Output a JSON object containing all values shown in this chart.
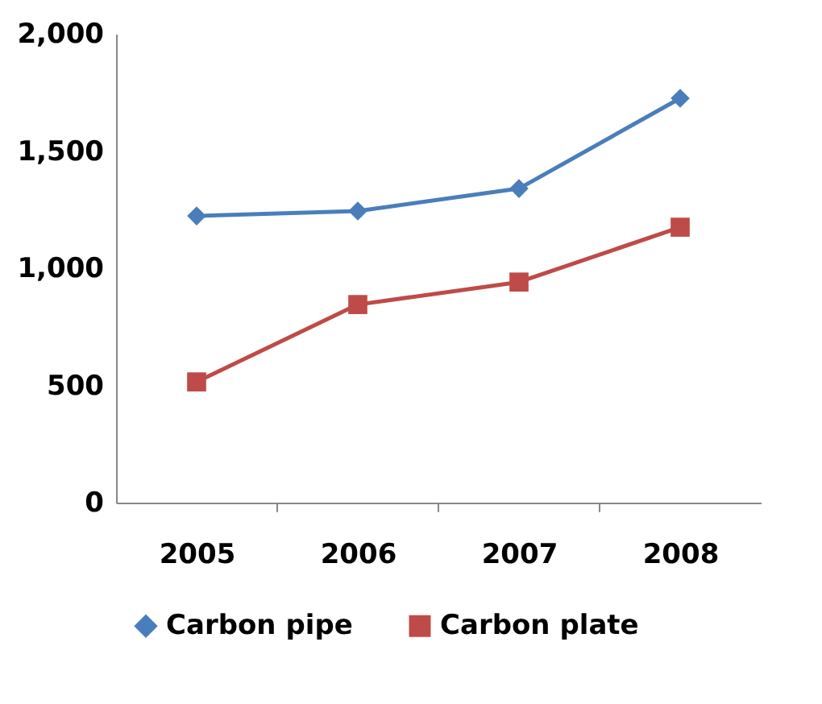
{
  "chart_data": {
    "type": "line",
    "categories": [
      "2005",
      "2006",
      "2007",
      "2008"
    ],
    "series": [
      {
        "name": "Carbon pipe",
        "color": "#4a7ebb",
        "marker": "diamond",
        "values": [
          1223,
          1244,
          1340,
          1725
        ]
      },
      {
        "name": "Carbon plate",
        "color": "#be4b48",
        "marker": "square",
        "values": [
          515,
          845,
          941,
          1175
        ]
      }
    ],
    "ylim": [
      0,
      2000
    ],
    "yticks": [
      {
        "value": 0,
        "label": "0"
      },
      {
        "value": 500,
        "label": "500"
      },
      {
        "value": 1000,
        "label": "1,000"
      },
      {
        "value": 1500,
        "label": "1,500"
      },
      {
        "value": 2000,
        "label": "2,000"
      }
    ],
    "grid": false,
    "legend": "bottom",
    "line_style": "solid"
  }
}
